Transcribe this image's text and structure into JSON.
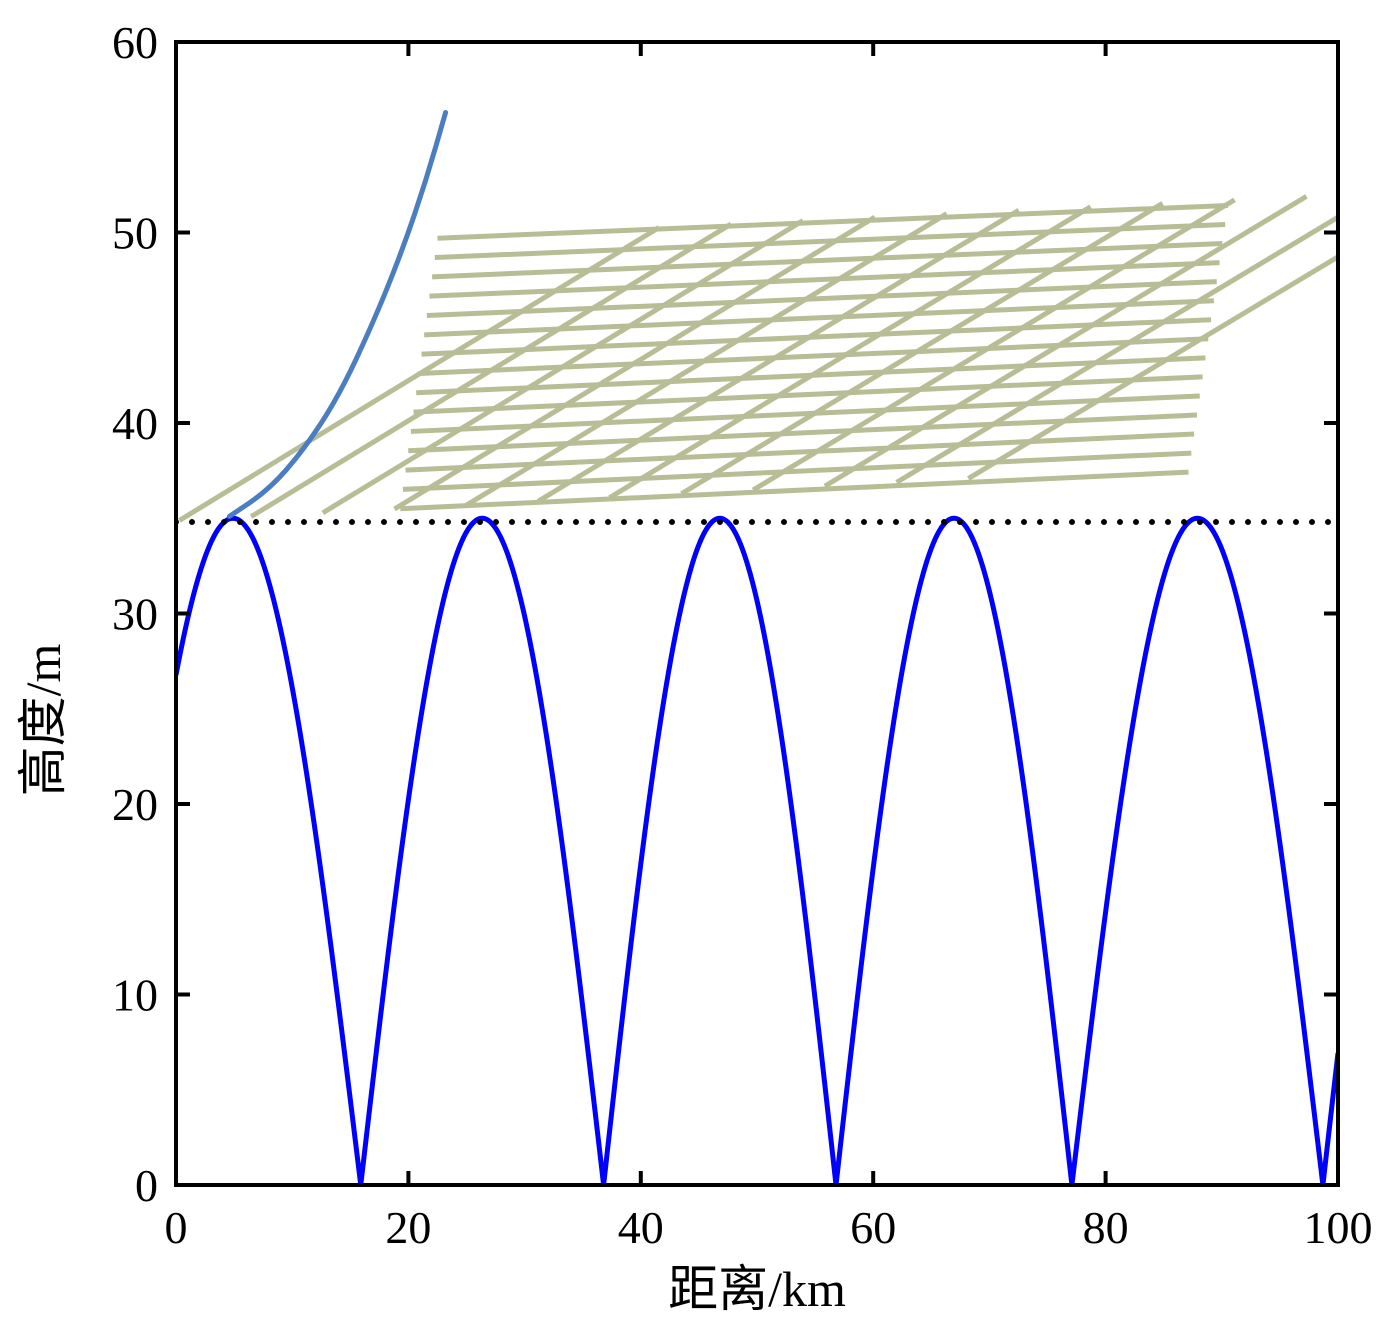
{
  "chart_data": {
    "type": "line",
    "title": "",
    "xlabel": "距离/km",
    "ylabel": "高度/m",
    "xlim": [
      0,
      100
    ],
    "ylim": [
      0,
      60
    ],
    "x_ticks": [
      "0",
      "20",
      "40",
      "60",
      "80",
      "100"
    ],
    "y_ticks": [
      "0",
      "10",
      "20",
      "30",
      "40",
      "50",
      "60"
    ],
    "grid": false,
    "legend": "none",
    "series": [
      {
        "role": "ground-profile",
        "color": "#0000ff",
        "description_values": {
          "peak_height": 35,
          "peaks_x": [
            4.6,
            26.3,
            46.8,
            67.2,
            87.8
          ],
          "troughs_x": [
            15.9,
            36.8,
            56.8,
            77.1,
            98.7
          ],
          "trough_height": 0,
          "start": [
            0,
            25
          ],
          "end": [
            100,
            4.5
          ]
        }
      },
      {
        "role": "trajectory-curve",
        "color": "#4a7ec0",
        "x": [
          4.6,
          8,
          11,
          14,
          17,
          19.5,
          21.5,
          23.2
        ],
        "y": [
          35.1,
          36.5,
          38.6,
          41.4,
          45.3,
          49.1,
          52.7,
          56.3
        ]
      },
      {
        "role": "reference-line",
        "style": "dotted",
        "color": "#000000",
        "x": [
          0,
          100
        ],
        "y": [
          34.8,
          34.8
        ]
      }
    ],
    "annotations": [
      {
        "type": "hatched-region",
        "color": "#b8bd96",
        "corners": [
          [
            19.3,
            35.5
          ],
          [
            87.2,
            37.7
          ],
          [
            90.6,
            51.7
          ],
          [
            59.1,
            56.5
          ],
          [
            22.5,
            49.7
          ]
        ]
      }
    ]
  }
}
